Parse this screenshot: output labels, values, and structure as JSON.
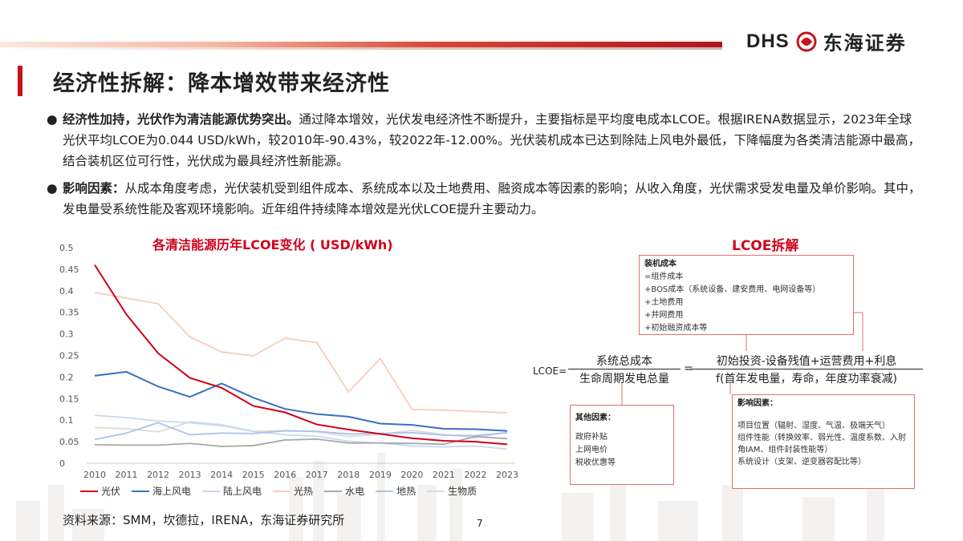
{
  "header": {
    "logo_latin": "DHS",
    "logo_cn": "东海证券",
    "title": "经济性拆解：降本增效带来经济性"
  },
  "bullets": [
    {
      "lead": "经济性加持，光伏作为清洁能源优势突出。",
      "text": "通过降本增效，光伏发电经济性不断提升，主要指标是平均度电成本LCOE。根据IRENA数据显示，2023年全球光伏平均LCOE为0.044 USD/kWh，较2010年-90.43%，较2022年-12.00%。光伏装机成本已达到除陆上风电外最低，下降幅度为各类清洁能源中最高，结合装机区位可行性，光伏成为最具经济性新能源。"
    },
    {
      "lead": "影响因素：",
      "text": "从成本角度考虑，光伏装机受到组件成本、系统成本以及土地费用、融资成本等因素的影响；从收入角度，光伏需求受发电量及单价影响。其中，发电量受系统性能及客观环境影响。近年组件持续降本增效是光伏LCOE提升主要动力。"
    }
  ],
  "chart_data": {
    "type": "line",
    "title": "各清洁能源历年LCOE变化 ( USD/kWh)",
    "x": [
      2010,
      2011,
      2012,
      2013,
      2014,
      2015,
      2016,
      2017,
      2018,
      2019,
      2020,
      2021,
      2022,
      2023
    ],
    "ylim": [
      0,
      0.5
    ],
    "yticks": [
      "0",
      "0.05",
      "0.1",
      "0.15",
      "0.2",
      "0.25",
      "0.3",
      "0.35",
      "0.4",
      "0.45",
      "0.5"
    ],
    "legend_position": "bottom",
    "series": [
      {
        "name": "光伏",
        "color": "#d0021b",
        "values": [
          0.46,
          0.345,
          0.255,
          0.198,
          0.175,
          0.133,
          0.118,
          0.09,
          0.078,
          0.068,
          0.058,
          0.052,
          0.05,
          0.044
        ]
      },
      {
        "name": "海上风电",
        "color": "#3a6fc4",
        "values": [
          0.203,
          0.212,
          0.178,
          0.154,
          0.185,
          0.152,
          0.126,
          0.114,
          0.108,
          0.092,
          0.089,
          0.08,
          0.079,
          0.075
        ]
      },
      {
        "name": "陆上风电",
        "color": "#c9d9ef",
        "values": [
          0.111,
          0.106,
          0.098,
          0.094,
          0.087,
          0.074,
          0.066,
          0.063,
          0.051,
          0.047,
          0.04,
          0.038,
          0.04,
          0.033
        ]
      },
      {
        "name": "光热",
        "color": "#f6cfbc",
        "values": [
          0.396,
          0.383,
          0.37,
          0.293,
          0.258,
          0.249,
          0.29,
          0.28,
          0.165,
          0.243,
          0.125,
          0.123,
          0.12,
          0.117
        ]
      },
      {
        "name": "水电",
        "color": "#a8a8a8",
        "values": [
          0.043,
          0.042,
          0.042,
          0.046,
          0.039,
          0.041,
          0.054,
          0.056,
          0.047,
          0.047,
          0.046,
          0.044,
          0.062,
          0.057
        ]
      },
      {
        "name": "地热",
        "color": "#a9c4e8",
        "values": [
          0.055,
          0.07,
          0.094,
          0.066,
          0.07,
          0.069,
          0.075,
          0.074,
          0.068,
          0.069,
          0.071,
          0.065,
          0.064,
          0.071
        ]
      },
      {
        "name": "生物质",
        "color": "#dcdcdc",
        "values": [
          0.083,
          0.08,
          0.073,
          0.096,
          0.09,
          0.074,
          0.076,
          0.073,
          0.062,
          0.067,
          0.076,
          0.067,
          0.059,
          0.072
        ]
      }
    ]
  },
  "lcoe": {
    "title": "LCOE拆解",
    "box_install": {
      "header": "装机成本",
      "lines": [
        "=组件成本",
        "+BOS成本（系统设备、建安费用、电网设备等）",
        "+土地费用",
        "+并网费用",
        "+初始融资成本等"
      ]
    },
    "formula": {
      "lhs": "LCOE=",
      "num1": "系统总成本",
      "den1": "生命周期发电总量",
      "eq": "=",
      "num2": "初始投资-设备残值+运营费用+利息",
      "den2": "f(首年发电量，寿命，年度功率衰减)"
    },
    "box_other": {
      "header": "其他因素：",
      "lines": [
        "政府补贴",
        "上网电价",
        "税收优惠等"
      ]
    },
    "box_impact": {
      "header": "影响因素：",
      "lines": [
        "项目位置（辐射、湿度、气温、极端天气）",
        "组件性能（转换效率、弱光性、温度系数、入射角IAM、组件封装性能等）",
        "系统设计（支架、逆变器容配比等）"
      ]
    }
  },
  "footer": {
    "source": "资料来源：SMM，坎德拉，IRENA，东海证券研究所",
    "page": "7"
  }
}
